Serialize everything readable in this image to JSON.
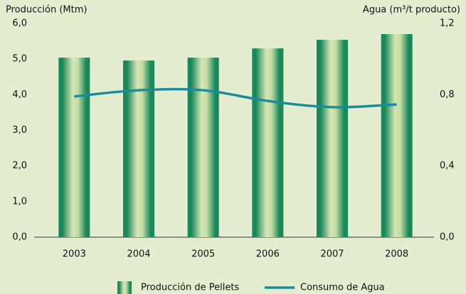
{
  "chart_data": {
    "type": "bar-line",
    "y_label": "Producción (Mtm)",
    "y2_label": "Agua (m³/t producto)",
    "categories": [
      "2003",
      "2004",
      "2005",
      "2006",
      "2007",
      "2008"
    ],
    "series": [
      {
        "name": "Producción de Pellets",
        "type": "bar",
        "color": "#17885a",
        "values": [
          5.04,
          4.96,
          5.04,
          5.3,
          5.54,
          5.7
        ]
      },
      {
        "name": "Consumo de Agua",
        "type": "line",
        "axis": "y2",
        "color": "#1b8c9c",
        "values": [
          0.79,
          0.825,
          0.825,
          0.765,
          0.73,
          0.745
        ]
      }
    ],
    "ylim": [
      0,
      6
    ],
    "yticks": [
      {
        "value": 0,
        "label": "0,0"
      },
      {
        "value": 1,
        "label": "1,0"
      },
      {
        "value": 2,
        "label": "2,0"
      },
      {
        "value": 3,
        "label": "3,0"
      },
      {
        "value": 4,
        "label": "4,0"
      },
      {
        "value": 5,
        "label": "5,0"
      },
      {
        "value": 6,
        "label": "6,0"
      }
    ],
    "y2lim": [
      0,
      1.2
    ],
    "y2ticks": [
      {
        "value": 0,
        "label": "0,0"
      },
      {
        "value": 0.4,
        "label": "0,4"
      },
      {
        "value": 0.8,
        "label": "0,8"
      },
      {
        "value": 1.2,
        "label": "1,2"
      }
    ],
    "legend": "bottom"
  }
}
